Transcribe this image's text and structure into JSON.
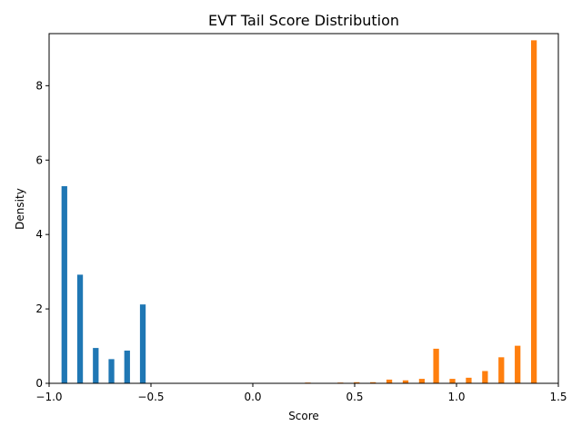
{
  "chart_data": {
    "type": "bar",
    "title": "EVT Tail Score Distribution",
    "xlabel": "Score",
    "ylabel": "Density",
    "xlim": [
      -1.0,
      1.5
    ],
    "ylim": [
      0,
      9.4
    ],
    "x_ticks": [
      -1.0,
      -0.5,
      0.0,
      0.5,
      1.0,
      1.5
    ],
    "x_tick_labels": [
      "−1.0",
      "−0.5",
      "0.0",
      "0.5",
      "1.0",
      "1.5"
    ],
    "y_ticks": [
      0,
      2,
      4,
      6,
      8
    ],
    "y_tick_labels": [
      "0",
      "2",
      "4",
      "6",
      "8"
    ],
    "grid": false,
    "legend": "none",
    "bar_width": 0.028,
    "series": [
      {
        "color": "#1f77b4",
        "x": [
          -0.925,
          -0.848,
          -0.771,
          -0.694,
          -0.617,
          -0.54
        ],
        "values": [
          5.3,
          2.92,
          0.95,
          0.65,
          0.88,
          2.12
        ]
      },
      {
        "color": "#ff7f0e",
        "x": [
          0.27,
          0.35,
          0.43,
          0.51,
          0.59,
          0.67,
          0.75,
          0.83,
          0.9,
          0.98,
          1.06,
          1.14,
          1.22,
          1.3,
          1.38
        ],
        "values": [
          0.02,
          0.0,
          0.02,
          0.03,
          0.03,
          0.1,
          0.08,
          0.12,
          0.93,
          0.12,
          0.15,
          0.33,
          0.7,
          1.01,
          9.22
        ]
      }
    ]
  }
}
